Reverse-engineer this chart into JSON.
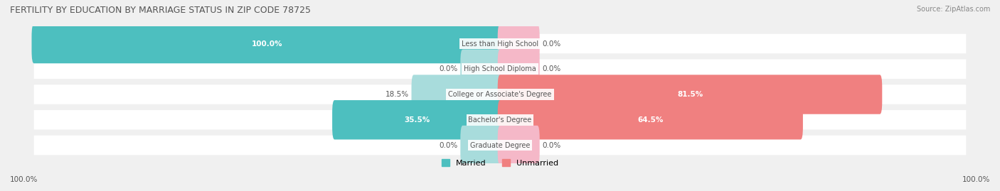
{
  "title": "FERTILITY BY EDUCATION BY MARRIAGE STATUS IN ZIP CODE 78725",
  "source": "Source: ZipAtlas.com",
  "categories": [
    "Less than High School",
    "High School Diploma",
    "College or Associate's Degree",
    "Bachelor's Degree",
    "Graduate Degree"
  ],
  "married_values": [
    100.0,
    0.0,
    18.5,
    35.5,
    0.0
  ],
  "unmarried_values": [
    0.0,
    0.0,
    81.5,
    64.5,
    0.0
  ],
  "married_color": "#4DBFBF",
  "married_color_light": "#A8DCDC",
  "unmarried_color": "#F08080",
  "unmarried_color_light": "#F5B8C8",
  "bg_color": "#F0F0F0",
  "bar_bg": "#E8E8E8",
  "title_color": "#555555",
  "source_color": "#888888",
  "label_color": "#555555",
  "value_color_white": "#FFFFFF",
  "axis_label_left": "100.0%",
  "axis_label_right": "100.0%",
  "figsize": [
    14.06,
    2.69
  ],
  "dpi": 100
}
